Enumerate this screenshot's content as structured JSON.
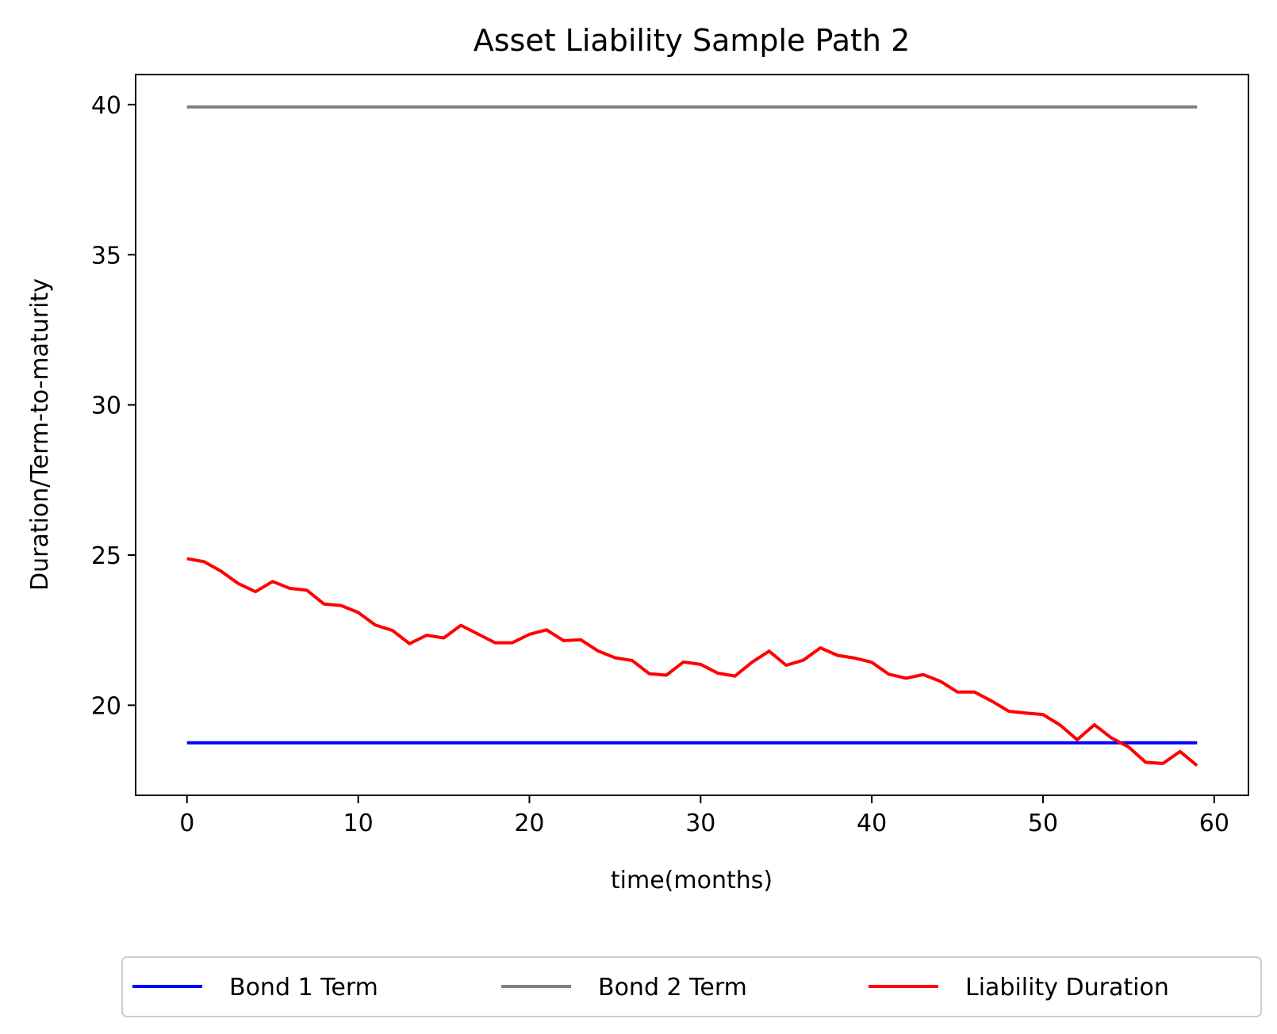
{
  "chart_data": {
    "type": "line",
    "title": "Asset Liability Sample Path 2",
    "xlabel": "time(months)",
    "ylabel": "Duration/Term-to-maturity",
    "xlim": [
      -3,
      62
    ],
    "ylim": [
      17.0,
      41.0
    ],
    "xticks": [
      0,
      10,
      20,
      30,
      40,
      50,
      60
    ],
    "yticks": [
      20,
      25,
      30,
      35,
      40
    ],
    "x": [
      0,
      1,
      2,
      3,
      4,
      5,
      6,
      7,
      8,
      9,
      10,
      11,
      12,
      13,
      14,
      15,
      16,
      17,
      18,
      19,
      20,
      21,
      22,
      23,
      24,
      25,
      26,
      27,
      28,
      29,
      30,
      31,
      32,
      33,
      34,
      35,
      36,
      37,
      38,
      39,
      40,
      41,
      42,
      43,
      44,
      45,
      46,
      47,
      48,
      49,
      50,
      51,
      52,
      53,
      54,
      55,
      56,
      57,
      58,
      59
    ],
    "series": [
      {
        "name": "Bond 1 Term",
        "color": "#0000ff",
        "values": [
          18.75,
          18.75,
          18.75,
          18.75,
          18.75,
          18.75,
          18.75,
          18.75,
          18.75,
          18.75,
          18.75,
          18.75,
          18.75,
          18.75,
          18.75,
          18.75,
          18.75,
          18.75,
          18.75,
          18.75,
          18.75,
          18.75,
          18.75,
          18.75,
          18.75,
          18.75,
          18.75,
          18.75,
          18.75,
          18.75,
          18.75,
          18.75,
          18.75,
          18.75,
          18.75,
          18.75,
          18.75,
          18.75,
          18.75,
          18.75,
          18.75,
          18.75,
          18.75,
          18.75,
          18.75,
          18.75,
          18.75,
          18.75,
          18.75,
          18.75,
          18.75,
          18.75,
          18.75,
          18.75,
          18.75,
          18.75,
          18.75,
          18.75,
          18.75,
          18.75
        ]
      },
      {
        "name": "Bond 2 Term",
        "color": "#808080",
        "values": [
          39.92,
          39.92,
          39.92,
          39.92,
          39.92,
          39.92,
          39.92,
          39.92,
          39.92,
          39.92,
          39.92,
          39.92,
          39.92,
          39.92,
          39.92,
          39.92,
          39.92,
          39.92,
          39.92,
          39.92,
          39.92,
          39.92,
          39.92,
          39.92,
          39.92,
          39.92,
          39.92,
          39.92,
          39.92,
          39.92,
          39.92,
          39.92,
          39.92,
          39.92,
          39.92,
          39.92,
          39.92,
          39.92,
          39.92,
          39.92,
          39.92,
          39.92,
          39.92,
          39.92,
          39.92,
          39.92,
          39.92,
          39.92,
          39.92,
          39.92,
          39.92,
          39.92,
          39.92,
          39.92,
          39.92,
          39.92,
          39.92,
          39.92,
          39.92,
          39.92
        ]
      },
      {
        "name": "Liability Duration",
        "color": "#ff0000",
        "values": [
          24.88,
          24.78,
          24.46,
          24.05,
          23.78,
          24.12,
          23.89,
          23.83,
          23.37,
          23.32,
          23.09,
          22.67,
          22.49,
          22.05,
          22.33,
          22.24,
          22.66,
          22.37,
          22.08,
          22.08,
          22.36,
          22.51,
          22.15,
          22.18,
          21.81,
          21.58,
          21.49,
          21.05,
          21.0,
          21.44,
          21.36,
          21.07,
          20.97,
          21.43,
          21.8,
          21.33,
          21.5,
          21.91,
          21.66,
          21.57,
          21.43,
          21.03,
          20.9,
          21.02,
          20.8,
          20.44,
          20.44,
          20.14,
          19.8,
          19.74,
          19.69,
          19.34,
          18.85,
          19.35,
          18.91,
          18.61,
          18.1,
          18.06,
          18.46,
          17.99
        ]
      }
    ],
    "grid": false,
    "legend": {
      "placement": "bottom-center",
      "entries": [
        "Bond 1 Term",
        "Bond 2 Term",
        "Liability Duration"
      ]
    }
  }
}
